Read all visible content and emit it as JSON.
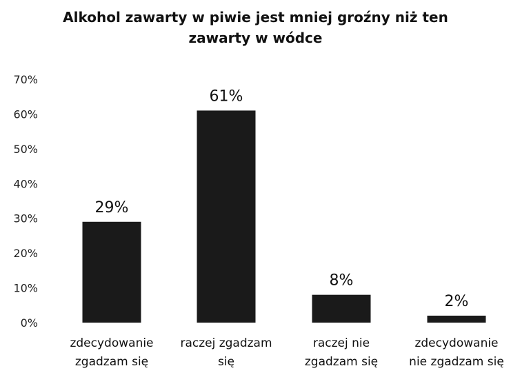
{
  "chart_data": {
    "type": "bar",
    "title_lines": [
      "Alkohol zawarty w piwie jest mniej groźny niż ten",
      "zawarty w wódce"
    ],
    "categories": [
      [
        "zdecydowanie",
        "zgadzam się"
      ],
      [
        "raczej zgadzam",
        "się"
      ],
      [
        "raczej nie",
        "zgadzam się"
      ],
      [
        "zdecydowanie",
        "nie zgadzam się"
      ]
    ],
    "values": [
      29,
      61,
      8,
      2
    ],
    "data_labels": [
      "29%",
      "61%",
      "8%",
      "2%"
    ],
    "yticks": [
      "0%",
      "10%",
      "20%",
      "30%",
      "40%",
      "50%",
      "60%",
      "70%"
    ],
    "ylim": [
      0,
      70
    ],
    "grid": false,
    "legend": "none",
    "bar_color": "#1a1a1a"
  }
}
